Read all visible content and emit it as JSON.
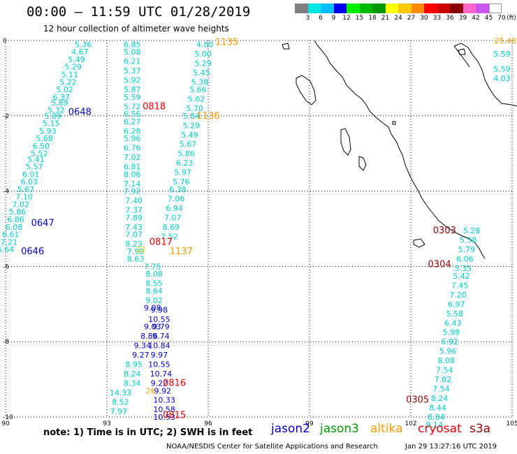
{
  "header": {
    "title": "00:00 – 11:59 UTC 01/28/2019",
    "subtitle": "12 hour collection of altimeter wave heights"
  },
  "colorbar": {
    "unit": "(ft)",
    "labels": [
      "3",
      "6",
      "9",
      "12",
      "15",
      "18",
      "21",
      "24",
      "27",
      "30",
      "33",
      "36",
      "39",
      "42",
      "45",
      "70"
    ],
    "colors": [
      "#7f7f7f",
      "#00e6e6",
      "#00bfff",
      "#0000ee",
      "#00ee00",
      "#00b800",
      "#009900",
      "#ffff00",
      "#ffc800",
      "#ff8c00",
      "#ff0000",
      "#cc0000",
      "#880000",
      "#ff66cc",
      "#cc55ee",
      "#ffffff"
    ]
  },
  "axes": {
    "x_ticks": [
      "90",
      "93",
      "96",
      "99",
      "102",
      "105"
    ],
    "y_ticks": [
      "0",
      "-2",
      "-4",
      "-6",
      "-8",
      "-10"
    ]
  },
  "legend": {
    "jason2": {
      "label": "jason2",
      "color": "#0000cc"
    },
    "jason3": {
      "label": "jason3",
      "color": "#009900"
    },
    "altika": {
      "label": "altika",
      "color": "#ff9900"
    },
    "cryosat": {
      "label": "cryosat",
      "color": "#ee0000"
    },
    "s3a": {
      "label": "s3a",
      "color": "#990000"
    }
  },
  "footer": {
    "note": "note:  1) Time is in UTC;  2) SWH is in feet",
    "credit": "NOAA/NESDIS Center for Satellite Applications and Research",
    "timestamp": "Jan 29 13:27:16 UTC 2019"
  },
  "chart_data": {
    "type": "scatter",
    "xlim": [
      90,
      105
    ],
    "ylim": [
      -10,
      0
    ],
    "grid": true,
    "time_labels": [
      {
        "text": "0648",
        "lon": 92.2,
        "lat": -1.9,
        "color": "#0000cc"
      },
      {
        "text": "0647",
        "lon": 91.1,
        "lat": -4.85,
        "color": "#0000cc"
      },
      {
        "text": "0646",
        "lon": 90.8,
        "lat": -5.6,
        "color": "#0000cc"
      },
      {
        "text": "0818",
        "lon": 94.4,
        "lat": -1.75,
        "color": "#ee0000"
      },
      {
        "text": "0817",
        "lon": 94.6,
        "lat": -5.35,
        "color": "#ee0000"
      },
      {
        "text": "0816",
        "lon": 95.0,
        "lat": -9.1,
        "color": "#ee0000"
      },
      {
        "text": "0815",
        "lon": 95.0,
        "lat": -9.95,
        "color": "#ee0000"
      },
      {
        "text": "1135",
        "lon": 96.55,
        "lat": -0.05,
        "color": "#ff9900"
      },
      {
        "text": "1136",
        "lon": 96.0,
        "lat": -2.0,
        "color": "#ff9900"
      },
      {
        "text": "1137",
        "lon": 95.2,
        "lat": -5.6,
        "color": "#ff9900"
      },
      {
        "text": "0303",
        "lon": 103.0,
        "lat": -5.05,
        "color": "#990000"
      },
      {
        "text": "0304",
        "lon": 102.85,
        "lat": -5.95,
        "color": "#990000"
      },
      {
        "text": "0305",
        "lon": 102.2,
        "lat": -9.55,
        "color": "#990000"
      }
    ],
    "series": [
      {
        "name": "jason2 pass 0646-0648",
        "color": "#00cccc",
        "points": [
          {
            "lon": 92.3,
            "lat": -0.1,
            "v": "5.36"
          },
          {
            "lon": 92.2,
            "lat": -0.3,
            "v": "4.67"
          },
          {
            "lon": 92.1,
            "lat": -0.5,
            "v": "5.49"
          },
          {
            "lon": 92.0,
            "lat": -0.7,
            "v": "5.29"
          },
          {
            "lon": 91.9,
            "lat": -0.9,
            "v": "5.11"
          },
          {
            "lon": 91.85,
            "lat": -1.1,
            "v": "5.22"
          },
          {
            "lon": 91.75,
            "lat": -1.3,
            "v": "5.02"
          },
          {
            "lon": 91.65,
            "lat": -1.5,
            "v": "6.37"
          },
          {
            "lon": 91.6,
            "lat": -1.65,
            "v": "5.89"
          },
          {
            "lon": 91.5,
            "lat": -1.85,
            "v": "5.32"
          },
          {
            "lon": 91.4,
            "lat": -2.0,
            "v": "5.89"
          },
          {
            "lon": 91.35,
            "lat": -2.2,
            "v": "5.15"
          },
          {
            "lon": 91.25,
            "lat": -2.4,
            "v": "5.93"
          },
          {
            "lon": 91.15,
            "lat": -2.6,
            "v": "5.68"
          },
          {
            "lon": 91.05,
            "lat": -2.8,
            "v": "6.50"
          },
          {
            "lon": 91.0,
            "lat": -3.0,
            "v": "5.52"
          },
          {
            "lon": 90.9,
            "lat": -3.15,
            "v": "5.41"
          },
          {
            "lon": 90.85,
            "lat": -3.35,
            "v": "5.57"
          },
          {
            "lon": 90.75,
            "lat": -3.55,
            "v": "6.01"
          },
          {
            "lon": 90.7,
            "lat": -3.75,
            "v": "6.03"
          },
          {
            "lon": 90.6,
            "lat": -3.95,
            "v": "5.67"
          },
          {
            "lon": 90.55,
            "lat": -4.15,
            "v": "7.10"
          },
          {
            "lon": 90.45,
            "lat": -4.35,
            "v": "7.02"
          },
          {
            "lon": 90.35,
            "lat": -4.55,
            "v": "5.86"
          },
          {
            "lon": 90.3,
            "lat": -4.75,
            "v": "6.86"
          },
          {
            "lon": 90.25,
            "lat": -4.95,
            "v": "6.08"
          },
          {
            "lon": 90.15,
            "lat": -5.15,
            "v": "6.61"
          },
          {
            "lon": 90.1,
            "lat": -5.35,
            "v": "7.21"
          },
          {
            "lon": 90.0,
            "lat": -5.55,
            "v": "6.64"
          }
        ]
      },
      {
        "name": "cryosat pass 0815-0818 (north)",
        "color": "#00cccc",
        "points": [
          {
            "lon": 93.75,
            "lat": -0.1,
            "v": "6.85"
          },
          {
            "lon": 93.75,
            "lat": -0.3,
            "v": "5.08"
          },
          {
            "lon": 93.75,
            "lat": -0.55,
            "v": "6.21"
          },
          {
            "lon": 93.75,
            "lat": -0.8,
            "v": "5.37"
          },
          {
            "lon": 93.75,
            "lat": -1.05,
            "v": "5.92"
          },
          {
            "lon": 93.75,
            "lat": -1.3,
            "v": "5.87"
          },
          {
            "lon": 93.75,
            "lat": -1.5,
            "v": "5.59"
          },
          {
            "lon": 93.75,
            "lat": -1.75,
            "v": "5.72"
          },
          {
            "lon": 93.75,
            "lat": -1.95,
            "v": "6.56"
          },
          {
            "lon": 93.75,
            "lat": -2.15,
            "v": "6.27"
          },
          {
            "lon": 93.75,
            "lat": -2.4,
            "v": "6.28"
          },
          {
            "lon": 93.75,
            "lat": -2.6,
            "v": "5.96"
          },
          {
            "lon": 93.75,
            "lat": -2.85,
            "v": "6.76"
          },
          {
            "lon": 93.75,
            "lat": -3.1,
            "v": "7.02"
          },
          {
            "lon": 93.75,
            "lat": -3.35,
            "v": "6.81"
          },
          {
            "lon": 93.75,
            "lat": -3.55,
            "v": "8.06"
          },
          {
            "lon": 93.75,
            "lat": -3.8,
            "v": "7.14"
          },
          {
            "lon": 93.75,
            "lat": -4.0,
            "v": "7.92"
          },
          {
            "lon": 93.8,
            "lat": -4.25,
            "v": "7.40"
          },
          {
            "lon": 93.8,
            "lat": -4.5,
            "v": "7.37"
          },
          {
            "lon": 93.8,
            "lat": -4.7,
            "v": "7.89"
          },
          {
            "lon": 93.8,
            "lat": -4.95,
            "v": "7.43"
          },
          {
            "lon": 93.8,
            "lat": -5.15,
            "v": "7.07"
          },
          {
            "lon": 93.8,
            "lat": -5.4,
            "v": "8.23"
          },
          {
            "lon": 93.85,
            "lat": -5.6,
            "v": "7.90"
          },
          {
            "lon": 93.85,
            "lat": -5.8,
            "v": "8.63"
          }
        ]
      },
      {
        "name": "altika pass 1135-1137",
        "color": "#00cccc",
        "points": [
          {
            "lon": 95.9,
            "lat": -0.1,
            "v": "4.80"
          },
          {
            "lon": 95.85,
            "lat": -0.35,
            "v": "5.00"
          },
          {
            "lon": 95.85,
            "lat": -0.6,
            "v": "5.29"
          },
          {
            "lon": 95.8,
            "lat": -0.85,
            "v": "5.45"
          },
          {
            "lon": 95.75,
            "lat": -1.1,
            "v": "5.38"
          },
          {
            "lon": 95.7,
            "lat": -1.3,
            "v": "5.66"
          },
          {
            "lon": 95.65,
            "lat": -1.55,
            "v": "5.62"
          },
          {
            "lon": 95.6,
            "lat": -1.8,
            "v": "5.70"
          },
          {
            "lon": 95.5,
            "lat": -2.0,
            "v": "5.84"
          },
          {
            "lon": 95.5,
            "lat": -2.25,
            "v": "5.29"
          },
          {
            "lon": 95.45,
            "lat": -2.5,
            "v": "5.49"
          },
          {
            "lon": 95.4,
            "lat": -2.75,
            "v": "5.67"
          },
          {
            "lon": 95.35,
            "lat": -3.0,
            "v": "5.86"
          },
          {
            "lon": 95.3,
            "lat": -3.25,
            "v": "6.23"
          },
          {
            "lon": 95.25,
            "lat": -3.5,
            "v": "5.97"
          },
          {
            "lon": 95.2,
            "lat": -3.75,
            "v": "5.76"
          },
          {
            "lon": 95.1,
            "lat": -3.95,
            "v": "6.38"
          },
          {
            "lon": 95.05,
            "lat": -4.2,
            "v": "7.06"
          },
          {
            "lon": 95.0,
            "lat": -4.45,
            "v": "6.94"
          },
          {
            "lon": 94.95,
            "lat": -4.7,
            "v": "7.07"
          },
          {
            "lon": 94.9,
            "lat": -4.95,
            "v": "8.69"
          },
          {
            "lon": 94.85,
            "lat": -5.2,
            "v": "7.52"
          }
        ]
      },
      {
        "name": "cryosat pass 0815-0818 (south)",
        "color": "#00cccc",
        "points": [
          {
            "lon": 94.35,
            "lat": -6.0,
            "v": "7.75"
          },
          {
            "lon": 94.4,
            "lat": -6.2,
            "v": "8.08"
          },
          {
            "lon": 94.4,
            "lat": -6.45,
            "v": "8.55"
          },
          {
            "lon": 94.4,
            "lat": -6.65,
            "v": "8.64"
          },
          {
            "lon": 94.4,
            "lat": -6.9,
            "v": "9.02"
          }
        ]
      },
      {
        "name": "jason2 pass 0815 region",
        "color": "#0000cc",
        "points": [
          {
            "lon": 94.35,
            "lat": -7.1,
            "v": "9.08"
          },
          {
            "lon": 94.55,
            "lat": -7.15,
            "v": "9.98"
          },
          {
            "lon": 94.55,
            "lat": -7.4,
            "v": "10.55"
          },
          {
            "lon": 94.35,
            "lat": -7.6,
            "v": "9.03"
          },
          {
            "lon": 94.6,
            "lat": -7.6,
            "v": "9.79"
          },
          {
            "lon": 94.25,
            "lat": -7.85,
            "v": "8.86"
          },
          {
            "lon": 94.6,
            "lat": -7.85,
            "v": "9.74"
          },
          {
            "lon": 94.05,
            "lat": -8.1,
            "v": "9.34"
          },
          {
            "lon": 94.55,
            "lat": -8.1,
            "v": "10.84"
          },
          {
            "lon": 94.0,
            "lat": -8.35,
            "v": "9.27"
          },
          {
            "lon": 94.55,
            "lat": -8.35,
            "v": "9.97"
          },
          {
            "lon": 94.55,
            "lat": -8.6,
            "v": "10.55"
          },
          {
            "lon": 94.6,
            "lat": -8.85,
            "v": "10.74"
          },
          {
            "lon": 94.55,
            "lat": -9.1,
            "v": "9.22"
          },
          {
            "lon": 94.65,
            "lat": -9.3,
            "v": "9.92"
          },
          {
            "lon": 94.7,
            "lat": -9.55,
            "v": "10.33"
          },
          {
            "lon": 94.7,
            "lat": -9.8,
            "v": "10.58"
          },
          {
            "lon": 94.7,
            "lat": -10.0,
            "v": "10.53"
          }
        ]
      },
      {
        "name": "jason3 pass 0815 region",
        "color": "#00cccc",
        "points": [
          {
            "lon": 93.8,
            "lat": -8.6,
            "v": "8.95"
          },
          {
            "lon": 93.75,
            "lat": -8.85,
            "v": "8.24"
          },
          {
            "lon": 93.75,
            "lat": -9.1,
            "v": "8.34"
          },
          {
            "lon": 93.4,
            "lat": -9.35,
            "v": "14.33"
          },
          {
            "lon": 93.4,
            "lat": -9.6,
            "v": "8.52"
          },
          {
            "lon": 93.35,
            "lat": -9.85,
            "v": "7.97"
          }
        ]
      },
      {
        "name": "s3a pass 0303-0305",
        "color": "#00cccc",
        "points": [
          {
            "lon": 103.8,
            "lat": -5.05,
            "v": "5.28"
          },
          {
            "lon": 103.7,
            "lat": -5.3,
            "v": "5.58"
          },
          {
            "lon": 103.65,
            "lat": -5.55,
            "v": "5.79"
          },
          {
            "lon": 103.6,
            "lat": -5.8,
            "v": "6.06"
          },
          {
            "lon": 103.55,
            "lat": -6.05,
            "v": "5.35"
          },
          {
            "lon": 103.5,
            "lat": -6.25,
            "v": "5.42"
          },
          {
            "lon": 103.45,
            "lat": -6.5,
            "v": "7.45"
          },
          {
            "lon": 103.4,
            "lat": -6.75,
            "v": "7.20"
          },
          {
            "lon": 103.35,
            "lat": -7.0,
            "v": "6.97"
          },
          {
            "lon": 103.3,
            "lat": -7.25,
            "v": "5.58"
          },
          {
            "lon": 103.25,
            "lat": -7.5,
            "v": "6.43"
          },
          {
            "lon": 103.2,
            "lat": -7.75,
            "v": "5.98"
          },
          {
            "lon": 103.15,
            "lat": -8.0,
            "v": "6.92"
          },
          {
            "lon": 103.1,
            "lat": -8.25,
            "v": "5.96"
          },
          {
            "lon": 103.05,
            "lat": -8.5,
            "v": "8.08"
          },
          {
            "lon": 103.0,
            "lat": -8.75,
            "v": "7.54"
          },
          {
            "lon": 102.95,
            "lat": -9.0,
            "v": "7.82"
          },
          {
            "lon": 102.9,
            "lat": -9.25,
            "v": "7.54"
          },
          {
            "lon": 102.85,
            "lat": -9.5,
            "v": "8.24"
          },
          {
            "lon": 102.8,
            "lat": -9.75,
            "v": "8.44"
          },
          {
            "lon": 102.75,
            "lat": -10.0,
            "v": "8.84"
          },
          {
            "lon": 102.7,
            "lat": -10.2,
            "v": "9.14"
          }
        ]
      },
      {
        "name": "northeast corner",
        "color": "#00cccc",
        "points": [
          {
            "lon": 104.7,
            "lat": -0.35,
            "v": "5.59"
          },
          {
            "lon": 104.7,
            "lat": -0.75,
            "v": "5.59"
          },
          {
            "lon": 104.7,
            "lat": -1.0,
            "v": "4.03"
          }
        ]
      }
    ],
    "highlights": [
      {
        "lon": 104.8,
        "lat": 0.0,
        "v": "25.48",
        "color": "#ff9900"
      },
      {
        "lon": 94.0,
        "lat": -5.55,
        "v": "22",
        "color": "#ffcc00"
      },
      {
        "lon": 94.3,
        "lat": -9.3,
        "v": "26",
        "color": "#ff9900"
      }
    ]
  }
}
